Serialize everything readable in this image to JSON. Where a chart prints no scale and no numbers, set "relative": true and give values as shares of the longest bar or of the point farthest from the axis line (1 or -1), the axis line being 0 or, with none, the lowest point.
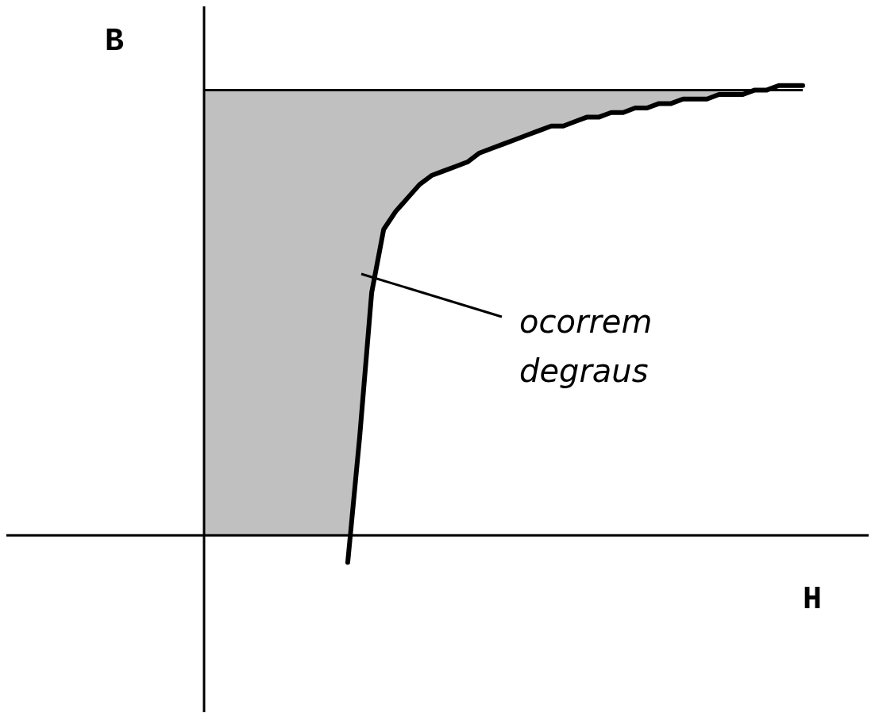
{
  "chart_data": {
    "type": "line",
    "relative": true,
    "xlabel": "H",
    "ylabel": "B",
    "categories": [
      null,
      null,
      null,
      null,
      null,
      null,
      null,
      null,
      null,
      null,
      null,
      null,
      null,
      null,
      null,
      null,
      null,
      null,
      null,
      null,
      null,
      null,
      null,
      null,
      null,
      null,
      null,
      null,
      null,
      null,
      null,
      null,
      null,
      null,
      null,
      null,
      null,
      null,
      null,
      null,
      null,
      null,
      null,
      null,
      null,
      null,
      null,
      null,
      null,
      null,
      null
    ],
    "series": [
      {
        "type": "line",
        "color": "#000000",
        "values": [
          null,
          null,
          null,
          null,
          null,
          null,
          null,
          null,
          null,
          null,
          null,
          null,
          -0.06,
          0.22,
          0.54,
          0.68,
          0.72,
          0.75,
          0.78,
          0.8,
          0.81,
          0.82,
          0.83,
          0.85,
          0.86,
          0.87,
          0.88,
          0.89,
          0.9,
          0.91,
          0.91,
          0.92,
          0.93,
          0.93,
          0.94,
          0.94,
          0.95,
          0.95,
          0.96,
          0.96,
          0.97,
          0.97,
          0.97,
          0.98,
          0.98,
          0.98,
          0.99,
          0.99,
          1.0,
          1.0,
          1.0
        ],
        "lower": [
          0,
          0,
          0,
          0,
          0,
          0,
          0,
          0,
          0,
          0,
          0,
          0,
          0,
          0.22,
          0.54,
          0.68,
          0.72,
          0.75,
          0.78,
          0.8,
          0.81,
          0.82,
          0.83,
          0.85,
          0.86,
          0.87,
          0.88,
          0.89,
          0.9,
          0.91,
          0.91,
          0.92,
          0.93,
          0.93,
          0.94,
          0.94,
          0.95,
          0.95,
          0.96,
          0.96,
          0.97,
          0.97,
          0.97,
          0.98,
          0.98,
          0.98,
          0.99,
          null,
          null,
          null,
          null
        ],
        "upper": [
          0.99,
          0.99,
          0.99,
          0.99,
          0.99,
          0.99,
          0.99,
          0.99,
          0.99,
          0.99,
          0.99,
          0.99,
          0.99,
          0.99,
          0.99,
          0.99,
          0.99,
          0.99,
          0.99,
          0.99,
          0.99,
          0.99,
          0.99,
          0.99,
          0.99,
          0.99,
          0.99,
          0.99,
          0.99,
          0.99,
          0.99,
          0.99,
          0.99,
          0.99,
          0.99,
          0.99,
          0.99,
          0.99,
          0.99,
          0.99,
          0.99,
          0.99,
          0.99,
          0.99,
          0.99,
          0.99,
          0.99,
          null,
          null,
          null,
          null
        ]
      }
    ],
    "ref_lines": [
      {
        "axis": "y",
        "value": 0.99,
        "color": "#000000"
      }
    ],
    "annotations": [
      "ocorrem degraus"
    ],
    "grid": false,
    "legend": false,
    "marker": "none",
    "line_style": "solid"
  }
}
